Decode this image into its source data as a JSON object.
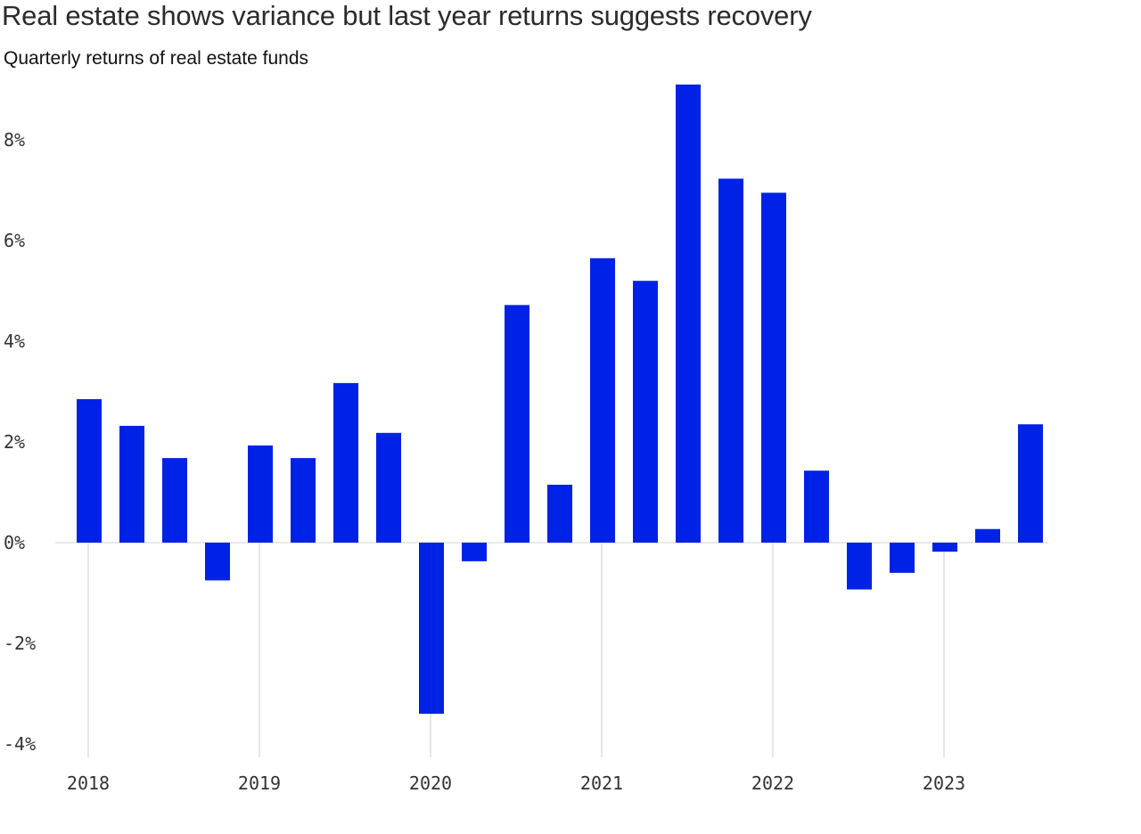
{
  "chart_data": {
    "type": "bar",
    "title": "Real estate shows variance but last year returns suggests recovery",
    "subtitle": "Quarterly returns of real estate funds",
    "xlabel": "",
    "ylabel": "",
    "ylim": [
      -4,
      9
    ],
    "y_ticks": [
      8,
      6,
      4,
      2,
      0,
      -2,
      -4
    ],
    "y_tick_labels": [
      "8%",
      "6%",
      "4%",
      "2%",
      "0%",
      "-2%",
      "-4%"
    ],
    "x_tick_labels": [
      "2018",
      "2019",
      "2020",
      "2021",
      "2022",
      "2023"
    ],
    "x_tick_positions": [
      0,
      4,
      8,
      12,
      16,
      20
    ],
    "grid": "vertical lines at year marks",
    "bar_color": "#0022e6",
    "categories": [
      "2018 Q1",
      "2018 Q2",
      "2018 Q3",
      "2018 Q4",
      "2019 Q1",
      "2019 Q2",
      "2019 Q3",
      "2019 Q4",
      "2020 Q1",
      "2020 Q2",
      "2020 Q3",
      "2020 Q4",
      "2021 Q1",
      "2021 Q2",
      "2021 Q3",
      "2021 Q4",
      "2022 Q1",
      "2022 Q2",
      "2022 Q3",
      "2022 Q4",
      "2023 Q1",
      "2023 Q2",
      "2023 Q3"
    ],
    "values": [
      2.85,
      2.32,
      1.68,
      -0.75,
      1.93,
      1.68,
      3.17,
      2.18,
      -3.4,
      -0.37,
      4.72,
      1.15,
      5.65,
      5.2,
      9.1,
      7.23,
      6.95,
      1.43,
      -0.93,
      -0.6,
      -0.18,
      0.27,
      2.35
    ]
  }
}
